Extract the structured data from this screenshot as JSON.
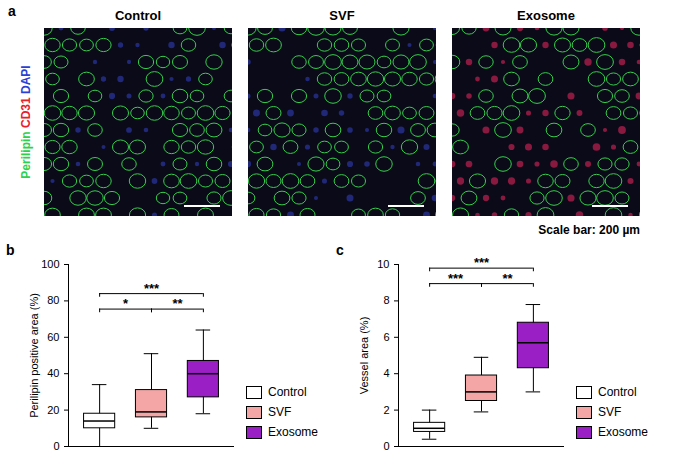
{
  "image_panel": {
    "panel": "a",
    "titles": [
      "Control",
      "SVF",
      "Exosome"
    ],
    "stains": [
      {
        "name": "Perilipin",
        "color": "#2fd04a"
      },
      {
        "name": "CD31",
        "color": "#e8202a"
      },
      {
        "name": "DAPI",
        "color": "#2b3fd6"
      }
    ],
    "scale_bar": "Scale bar: 200 µm"
  },
  "chart_data": [
    {
      "type": "box",
      "panel": "b",
      "categories": [
        "Control",
        "SVF",
        "Exosome"
      ],
      "colors": [
        "#ffffff",
        "#f4a6a6",
        "#9a1fc4"
      ],
      "boxes": [
        {
          "min": 0,
          "q1": 10,
          "median": 14,
          "q3": 18,
          "max": 34
        },
        {
          "min": 10,
          "q1": 16,
          "median": 19,
          "q3": 31,
          "max": 51
        },
        {
          "min": 18,
          "q1": 27,
          "median": 40,
          "q3": 47,
          "max": 64
        }
      ],
      "ylabel": "Perilipin positive area (%)",
      "ylim": [
        0,
        100
      ],
      "yticks": [
        0,
        20,
        40,
        60,
        80,
        100
      ],
      "legend": "right",
      "tick_labels": "y",
      "annotations": [
        {
          "from": "Control",
          "to": "SVF",
          "label": "*"
        },
        {
          "from": "Control",
          "to": "Exosome",
          "label": "***"
        },
        {
          "from": "SVF",
          "to": "Exosome",
          "label": "**"
        }
      ]
    },
    {
      "type": "box",
      "panel": "c",
      "categories": [
        "Control",
        "SVF",
        "Exosome"
      ],
      "colors": [
        "#ffffff",
        "#f4a6a6",
        "#9a1fc4"
      ],
      "boxes": [
        {
          "min": 0.4,
          "q1": 0.8,
          "median": 1.0,
          "q3": 1.3,
          "max": 2.0
        },
        {
          "min": 1.9,
          "q1": 2.5,
          "median": 3.0,
          "q3": 3.9,
          "max": 4.9
        },
        {
          "min": 3.0,
          "q1": 4.3,
          "median": 5.7,
          "q3": 6.8,
          "max": 7.8
        }
      ],
      "ylabel": "Vessel area (%)",
      "ylim": [
        0,
        10
      ],
      "yticks": [
        0,
        2,
        4,
        6,
        8,
        10
      ],
      "legend": "right",
      "tick_labels": "y",
      "annotations": [
        {
          "from": "Control",
          "to": "SVF",
          "label": "***"
        },
        {
          "from": "Control",
          "to": "Exosome",
          "label": "***"
        },
        {
          "from": "SVF",
          "to": "Exosome",
          "label": "**"
        }
      ]
    }
  ]
}
